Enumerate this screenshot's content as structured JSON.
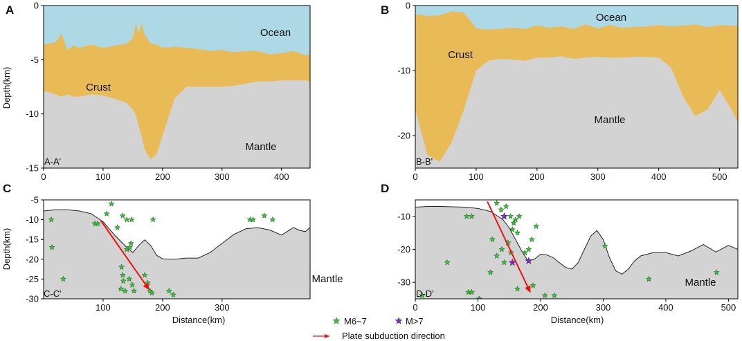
{
  "legend": {
    "m6_7": "M6~7",
    "m7": "M>7",
    "arrow": "Plate subduction direction"
  },
  "colors": {
    "ocean": "#add8e6",
    "crust": "#e9bb56",
    "mantle": "#d3d3d3",
    "quake_small": "#3cbf3c",
    "quake_large": "#7b2fbe",
    "arrow": "#ee1111"
  },
  "chart_data": [
    {
      "id": "A",
      "type": "area",
      "panel_label": "A",
      "corner_label": "A-A'",
      "xlim": [
        0,
        448
      ],
      "ylim": [
        -15,
        0
      ],
      "xticks": [
        0,
        100,
        200,
        300,
        400
      ],
      "yticks": [
        0,
        -5,
        -10,
        -15
      ],
      "xlabel": "",
      "ylabel": "Depth(km)",
      "labels": {
        "ocean": "Ocean",
        "crust": "Crust",
        "mantle": "Mantle"
      },
      "x": [
        0,
        10,
        20,
        30,
        40,
        50,
        60,
        80,
        100,
        120,
        140,
        150,
        155,
        160,
        165,
        170,
        180,
        190,
        200,
        220,
        240,
        260,
        280,
        300,
        320,
        340,
        360,
        380,
        400,
        420,
        440,
        448
      ],
      "seafloor": [
        -3.6,
        -3.5,
        -3.4,
        -2.6,
        -4.1,
        -3.7,
        -3.9,
        -3.6,
        -3.9,
        -3.7,
        -3.5,
        -3.0,
        -1.6,
        -2.6,
        -1.6,
        -2.7,
        -3.5,
        -3.6,
        -3.9,
        -3.8,
        -3.9,
        -4.0,
        -4.2,
        -4.1,
        -4.3,
        -4.2,
        -4.2,
        -4.5,
        -4.4,
        -4.2,
        -4.6,
        -4.5
      ],
      "moho": [
        -7.9,
        -8.0,
        -8.2,
        -8.4,
        -8.2,
        -8.4,
        -8.4,
        -8.2,
        -8.3,
        -8.6,
        -9.0,
        -9.6,
        -10.1,
        -11.1,
        -12.1,
        -13.3,
        -14.2,
        -13.7,
        -12.0,
        -8.6,
        -7.5,
        -7.5,
        -7.5,
        -7.5,
        -7.4,
        -7.2,
        -7.0,
        -7.0,
        -6.9,
        -6.9,
        -6.9,
        -7.0
      ]
    },
    {
      "id": "B",
      "type": "area",
      "panel_label": "B",
      "corner_label": "B-B'",
      "xlim": [
        0,
        530
      ],
      "ylim": [
        -25,
        0
      ],
      "xticks": [
        0,
        100,
        200,
        300,
        400,
        500
      ],
      "yticks": [
        0,
        -10,
        -20
      ],
      "xlabel": "",
      "ylabel": "",
      "labels": {
        "ocean": "Ocean",
        "crust": "Crust",
        "mantle": "Mantle"
      },
      "x": [
        0,
        20,
        40,
        60,
        80,
        100,
        120,
        140,
        160,
        180,
        200,
        220,
        240,
        260,
        280,
        300,
        320,
        340,
        360,
        380,
        400,
        420,
        440,
        460,
        480,
        500,
        520,
        530
      ],
      "seafloor": [
        -1.3,
        -1.6,
        -1.5,
        -0.9,
        -1.1,
        -3.5,
        -3.7,
        -3.6,
        -3.4,
        -3.6,
        -3.1,
        -3.4,
        -3.2,
        -3.6,
        -2.9,
        -3.5,
        -3.0,
        -3.4,
        -3.3,
        -3.2,
        -3.0,
        -3.2,
        -3.1,
        -2.9,
        -3.3,
        -3.0,
        -3.1,
        -3.1
      ],
      "moho": [
        -16.0,
        -23.0,
        -24.0,
        -21.0,
        -16.0,
        -10.0,
        -8.5,
        -8.2,
        -8.3,
        -8.5,
        -8.0,
        -8.0,
        -7.8,
        -8.2,
        -8.0,
        -7.9,
        -8.0,
        -8.0,
        -7.9,
        -7.9,
        -8.0,
        -9.5,
        -14.0,
        -17.0,
        -16.0,
        -13.0,
        -16.0,
        -18.0
      ]
    },
    {
      "id": "C",
      "type": "scatter",
      "panel_label": "C",
      "corner_label": "C-C'",
      "xlim": [
        0,
        448
      ],
      "ylim": [
        -30,
        -5
      ],
      "xticks": [
        100,
        200,
        300
      ],
      "yticks": [
        -5,
        -10,
        -15,
        -20,
        -25,
        -30
      ],
      "xlabel": "Distance(km)",
      "ylabel": "Depth(km)",
      "labels": {
        "mantle": "Mantle"
      },
      "surface_x": [
        0,
        20,
        40,
        60,
        80,
        100,
        120,
        140,
        150,
        160,
        170,
        180,
        190,
        200,
        220,
        240,
        260,
        280,
        300,
        320,
        340,
        360,
        380,
        400,
        420,
        430,
        440,
        448
      ],
      "surface_y": [
        -7.8,
        -7.5,
        -7.5,
        -7.8,
        -8.5,
        -10.5,
        -14.0,
        -17.0,
        -18.3,
        -16.5,
        -15.1,
        -16.5,
        -19.0,
        -19.9,
        -20.0,
        -19.7,
        -19.7,
        -18.3,
        -16.0,
        -13.7,
        -12.3,
        -12.0,
        -12.6,
        -13.9,
        -12.0,
        -12.7,
        -13.0,
        -12.0
      ],
      "arrow": {
        "from": [
          96,
          -10.2
        ],
        "to": [
          178,
          -27.8
        ]
      },
      "quakes_m6_7": [
        [
          13,
          -10
        ],
        [
          14,
          -17
        ],
        [
          33,
          -25
        ],
        [
          86,
          -11
        ],
        [
          91,
          -11
        ],
        [
          106,
          -8.5
        ],
        [
          114,
          -6
        ],
        [
          124,
          -12
        ],
        [
          133,
          -9
        ],
        [
          140,
          -10
        ],
        [
          148,
          -10
        ],
        [
          184,
          -10
        ],
        [
          140,
          -17.5
        ],
        [
          145,
          -17
        ],
        [
          147,
          -16
        ],
        [
          131,
          -22
        ],
        [
          133,
          -24
        ],
        [
          134,
          -25.5
        ],
        [
          130,
          -27.5
        ],
        [
          137,
          -28
        ],
        [
          144,
          -25
        ],
        [
          149,
          -26.5
        ],
        [
          152,
          -28
        ],
        [
          170,
          -24
        ],
        [
          175,
          -26
        ],
        [
          179,
          -28
        ],
        [
          182,
          -28.5
        ],
        [
          211,
          -28
        ],
        [
          218,
          -29
        ],
        [
          347,
          -10
        ],
        [
          352,
          -10
        ],
        [
          371,
          -9
        ],
        [
          385,
          -10
        ]
      ],
      "quakes_m7": []
    },
    {
      "id": "D",
      "type": "scatter",
      "panel_label": "D",
      "corner_label": "D-D'",
      "xlim": [
        0,
        515
      ],
      "ylim": [
        -35,
        -5
      ],
      "xticks": [
        0,
        100,
        200,
        300,
        400,
        500
      ],
      "yticks": [
        -10,
        -20,
        -30
      ],
      "xlabel": "Distance(km)",
      "ylabel": "",
      "labels": {
        "mantle": "Mantle"
      },
      "surface_x": [
        0,
        20,
        40,
        60,
        80,
        100,
        120,
        140,
        150,
        160,
        170,
        180,
        190,
        200,
        210,
        220,
        230,
        240,
        250,
        260,
        270,
        280,
        290,
        300,
        310,
        320,
        330,
        340,
        350,
        360,
        380,
        400,
        420,
        440,
        460,
        480,
        500,
        515
      ],
      "surface_y": [
        -7.2,
        -7.0,
        -7.0,
        -7.1,
        -7.2,
        -7.6,
        -8.5,
        -11.0,
        -13.5,
        -17.0,
        -20.5,
        -23.5,
        -23.0,
        -21.5,
        -21.7,
        -22.5,
        -24.0,
        -25.5,
        -26.0,
        -24.0,
        -20.0,
        -16.0,
        -14.3,
        -17.0,
        -22.5,
        -26.5,
        -27.5,
        -26.0,
        -23.5,
        -22.0,
        -21.0,
        -21.0,
        -22.0,
        -20.5,
        -18.5,
        -20.8,
        -18.8,
        -20.0
      ],
      "arrow": {
        "from": [
          115,
          -5.5
        ],
        "to": [
          184,
          -33.2
        ]
      },
      "quakes_m6_7": [
        [
          11,
          -34
        ],
        [
          51,
          -24
        ],
        [
          82,
          -10
        ],
        [
          90,
          -10
        ],
        [
          85,
          -33
        ],
        [
          90,
          -33
        ],
        [
          102,
          -35
        ],
        [
          120,
          -27
        ],
        [
          123,
          -17
        ],
        [
          130,
          -6
        ],
        [
          137,
          -8
        ],
        [
          142,
          -10
        ],
        [
          145,
          -7
        ],
        [
          152,
          -10
        ],
        [
          155,
          -14
        ],
        [
          157,
          -12
        ],
        [
          160,
          -11
        ],
        [
          163,
          -15
        ],
        [
          166,
          -10
        ],
        [
          130,
          -22
        ],
        [
          138,
          -20
        ],
        [
          142,
          -24
        ],
        [
          148,
          -18
        ],
        [
          153,
          -21
        ],
        [
          163,
          -32
        ],
        [
          175,
          -21
        ],
        [
          181,
          -20
        ],
        [
          186,
          -17
        ],
        [
          188,
          -31
        ],
        [
          193,
          -13
        ],
        [
          207,
          -34
        ],
        [
          222,
          -34
        ],
        [
          303,
          -19
        ],
        [
          373,
          -29
        ],
        [
          481,
          -27
        ]
      ],
      "quakes_m7": [
        [
          142,
          -10
        ],
        [
          155,
          -24
        ],
        [
          181,
          -23.5
        ]
      ]
    }
  ]
}
